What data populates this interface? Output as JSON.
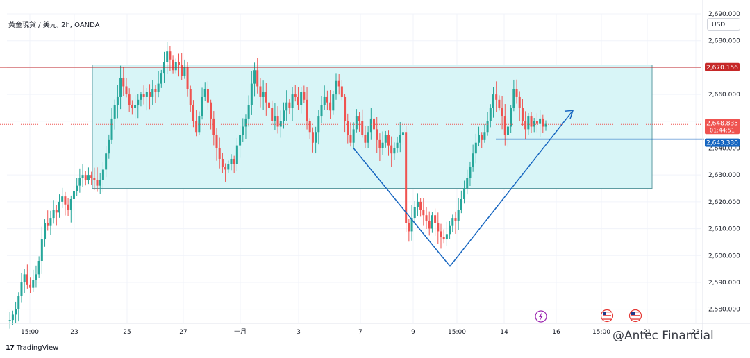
{
  "header": {
    "symbol_title": "黃金現貨 / 美元, 2h, OANDA",
    "currency": "USD"
  },
  "branding": {
    "logo_text": "17",
    "name": "TradingView",
    "watermark": "@Antec Financial"
  },
  "colors": {
    "up": "#26a69a",
    "down": "#ef5350",
    "resistance": "#c62828",
    "support": "#1565c0",
    "box_fill": "#d8f5f7",
    "box_stroke": "#5b9aa0",
    "pattern": "#2962ff"
  },
  "chart_data": {
    "type": "candlestick",
    "y_axis": {
      "min": 2575,
      "max": 2690,
      "ticks": [
        "2,580.000",
        "2,590.000",
        "2,600.000",
        "2,610.000",
        "2,620.000",
        "2,630.000",
        "2,640.000",
        "2,650.000",
        "2,660.000",
        "2,670.000",
        "2,680.000",
        "2,690.000"
      ]
    },
    "x_axis": {
      "ticks": [
        "15:00",
        "23",
        "25",
        "27",
        "十月",
        "3",
        "7",
        "9",
        "15:00",
        "14",
        "16",
        "15:00",
        "21",
        "23"
      ]
    },
    "price_labels": [
      {
        "name": "resistance",
        "value": 2670.156,
        "text": "2,670.156"
      },
      {
        "name": "last",
        "value": 2648.835,
        "text": "2,648.835",
        "countdown": "01:44:51"
      },
      {
        "name": "support",
        "value": 2643.33,
        "text": "2,643.330"
      }
    ],
    "range_box": {
      "top": 2671,
      "bottom": 2625,
      "x_start": 0.123,
      "x_end": 0.929
    },
    "v_pattern": {
      "start": [
        0.499,
        2640
      ],
      "bottom": [
        0.638,
        2596
      ],
      "end": [
        0.815,
        2654
      ]
    },
    "candles_seed": [
      2576,
      2576,
      2578,
      2580,
      2585,
      2590,
      2593,
      2589,
      2588,
      2591,
      2593,
      2598,
      2606,
      2612,
      2611,
      2614,
      2617,
      2616,
      2620,
      2622,
      2619,
      2617,
      2621,
      2624,
      2626,
      2629,
      2630,
      2628,
      2630,
      2629,
      2628,
      2626,
      2628,
      2632,
      2638,
      2643,
      2651,
      2656,
      2659,
      2666,
      2663,
      2660,
      2656,
      2655,
      2656,
      2658,
      2660,
      2659,
      2661,
      2659,
      2662,
      2661,
      2664,
      2668,
      2672,
      2676,
      2673,
      2669,
      2672,
      2671,
      2667,
      2670,
      2662,
      2656,
      2650,
      2646,
      2652,
      2659,
      2662,
      2657,
      2651,
      2645,
      2640,
      2636,
      2633,
      2632,
      2634,
      2636,
      2634,
      2641,
      2645,
      2648,
      2651,
      2656,
      2664,
      2669,
      2663,
      2659,
      2661,
      2657,
      2655,
      2650,
      2652,
      2648,
      2650,
      2654,
      2657,
      2655,
      2660,
      2659,
      2656,
      2661,
      2658,
      2650,
      2646,
      2642,
      2646,
      2652,
      2656,
      2659,
      2657,
      2654,
      2660,
      2665,
      2663,
      2659,
      2650,
      2645,
      2642,
      2647,
      2652,
      2650,
      2645,
      2642,
      2646,
      2651,
      2647,
      2643,
      2640,
      2642,
      2645,
      2641,
      2638,
      2640,
      2642,
      2645,
      2646,
      2612,
      2609,
      2614,
      2618,
      2620,
      2617,
      2615,
      2613,
      2610,
      2615,
      2612,
      2609,
      2607,
      2606,
      2608,
      2611,
      2614,
      2613,
      2617,
      2621,
      2625,
      2629,
      2633,
      2638,
      2642,
      2645,
      2643,
      2646,
      2650,
      2655,
      2660,
      2658,
      2655,
      2652,
      2645,
      2648,
      2655,
      2662,
      2659,
      2655,
      2650,
      2647,
      2652,
      2648,
      2650,
      2649,
      2651,
      2648,
      2649
    ]
  }
}
